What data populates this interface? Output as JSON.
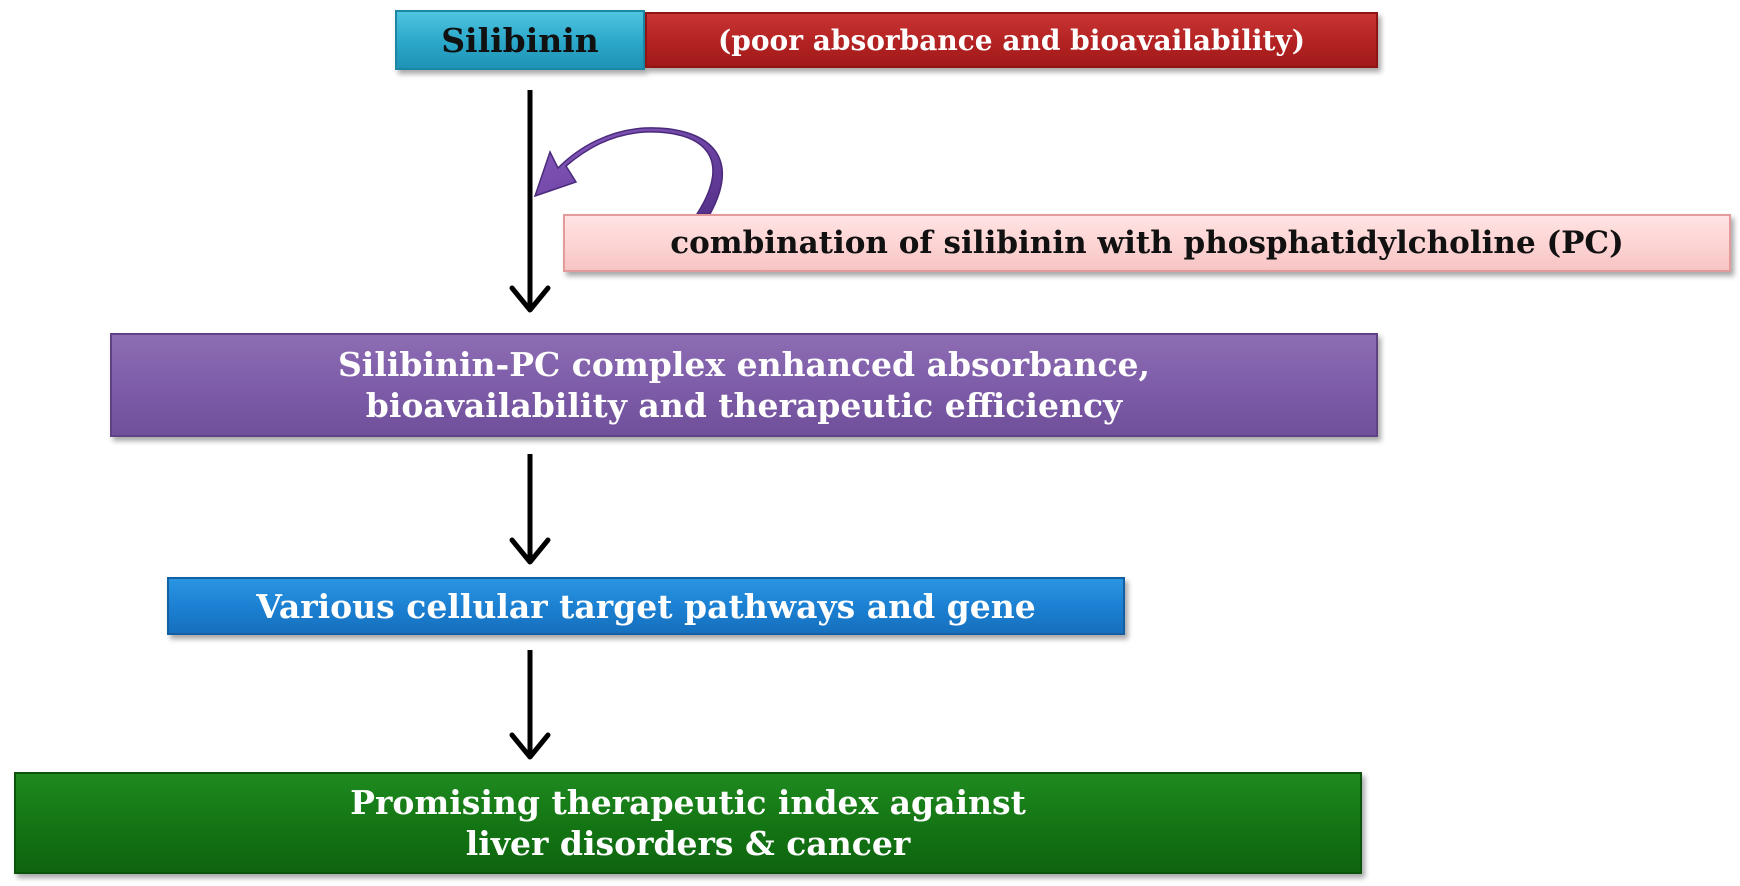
{
  "diagram": {
    "silibinin": "Silibinin",
    "poor_absorbance": "(poor absorbance and bioavailability)",
    "combination": "combination of silibinin with phosphatidylcholine (PC)",
    "complex_line1": "Silibinin-PC complex enhanced absorbance,",
    "complex_line2": "bioavailability and therapeutic efficiency",
    "pathways": "Various cellular target pathways and gene",
    "promising_line1": "Promising therapeutic index against",
    "promising_line2": "liver disorders & cancer"
  },
  "colors": {
    "silibinin_box": "#2aa7c9",
    "poor_box": "#b32222",
    "combination_box": "#fdd3d3",
    "complex_box": "#7d5ba8",
    "pathways_box": "#1b7fd1",
    "promising_box": "#137413",
    "curved_arrow": "#6a3f9a",
    "arrows": "#000000"
  }
}
